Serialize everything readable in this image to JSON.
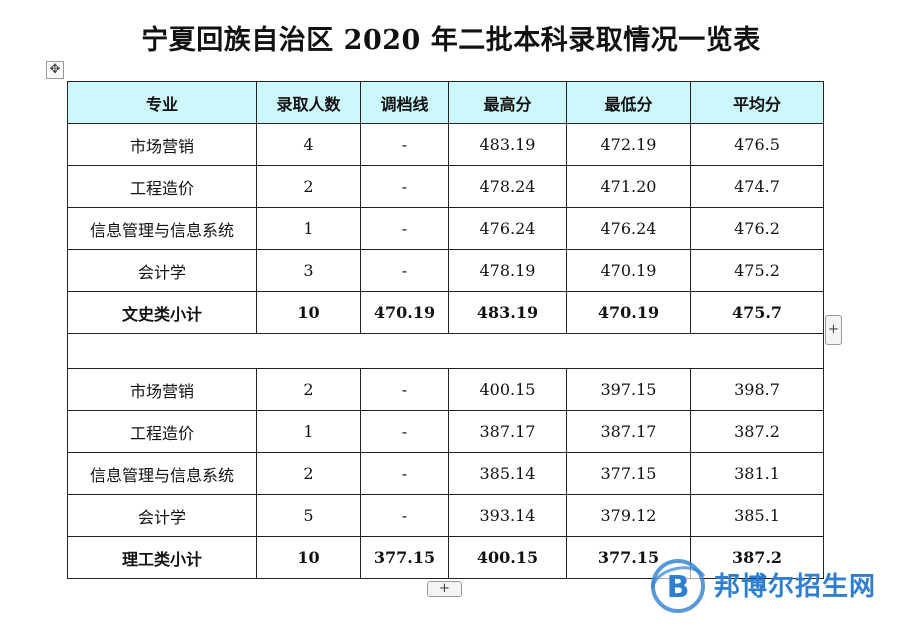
{
  "title": "宁夏回族自治区 2020 年二批本科录取情况一览表",
  "table": {
    "headers": [
      "专业",
      "录取人数",
      "调档线",
      "最高分",
      "最低分",
      "平均分"
    ],
    "liberal_arts": [
      [
        "市场营销",
        "4",
        "-",
        "483.19",
        "472.19",
        "476.5"
      ],
      [
        "工程造价",
        "2",
        "-",
        "478.24",
        "471.20",
        "474.7"
      ],
      [
        "信息管理与信息系统",
        "1",
        "-",
        "476.24",
        "476.24",
        "476.2"
      ],
      [
        "会计学",
        "3",
        "-",
        "478.19",
        "470.19",
        "475.2"
      ]
    ],
    "liberal_arts_subtotal": [
      "文史类小计",
      "10",
      "470.19",
      "483.19",
      "470.19",
      "475.7"
    ],
    "science": [
      [
        "市场营销",
        "2",
        "-",
        "400.15",
        "397.15",
        "398.7"
      ],
      [
        "工程造价",
        "1",
        "-",
        "387.17",
        "387.17",
        "387.2"
      ],
      [
        "信息管理与信息系统",
        "2",
        "-",
        "385.14",
        "377.15",
        "381.1"
      ],
      [
        "会计学",
        "5",
        "-",
        "393.14",
        "379.12",
        "385.1"
      ]
    ],
    "science_subtotal": [
      "理工类小计",
      "10",
      "377.15",
      "400.15",
      "377.15",
      "387.2"
    ]
  },
  "controls": {
    "move_handle": "✥",
    "add_column": "+",
    "add_row": "+"
  },
  "watermark": {
    "text": "邦博尔招生网",
    "logo_letter": "B",
    "color": "#2f7fd0"
  }
}
